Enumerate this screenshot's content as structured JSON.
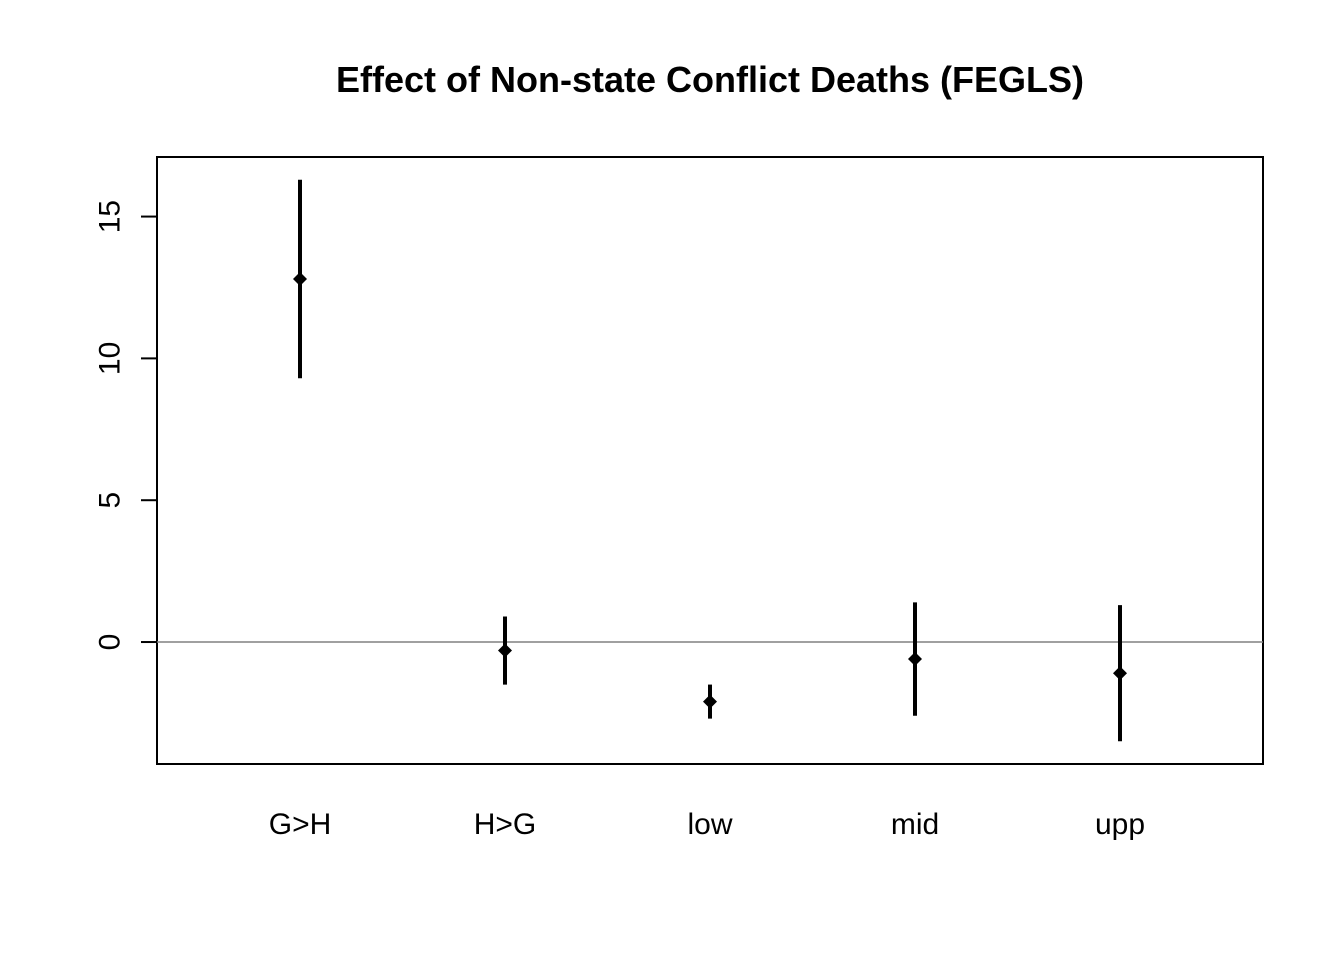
{
  "chart_data": {
    "type": "errorbar",
    "title": "Effect of Non-state Conflict Deaths (FEGLS)",
    "xlabel": "",
    "ylabel": "",
    "categories": [
      "G>H",
      "H>G",
      "low",
      "mid",
      "upp"
    ],
    "estimates": [
      12.8,
      -0.3,
      -2.1,
      -0.6,
      -1.1
    ],
    "lower": [
      9.3,
      -1.5,
      -2.7,
      -2.6,
      -3.5
    ],
    "upper": [
      16.3,
      0.9,
      -1.5,
      1.4,
      1.3
    ],
    "ylim": [
      -4.3,
      17.1
    ],
    "yticks": [
      0,
      5,
      10,
      15
    ],
    "reference_line": 0,
    "grid": false,
    "colors": {
      "marks": "#000000",
      "reference_line": "#808080",
      "frame": "#000000"
    }
  }
}
